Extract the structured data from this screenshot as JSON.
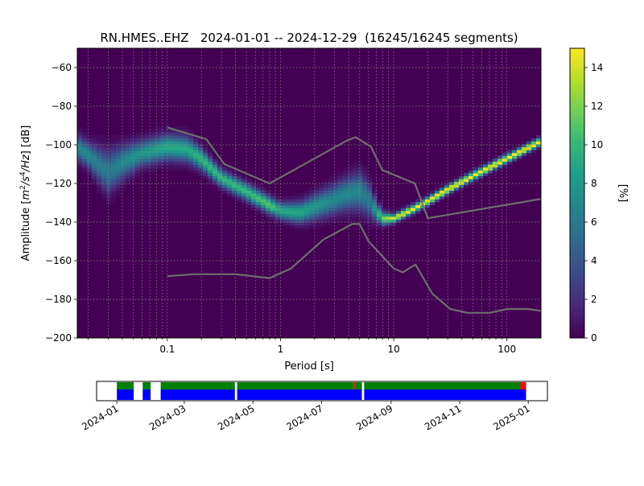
{
  "chart_data": [
    {
      "type": "heatmap",
      "title": "RN.HMES..EHZ   2024-01-01 -- 2024-12-29  (16245/16245 segments)",
      "xlabel": "Period [s]",
      "ylabel_parts": [
        "Amplitude [",
        "m",
        "2",
        "/",
        "s",
        "4",
        "/",
        "Hz",
        "] [dB]"
      ],
      "x_scale": "log",
      "xlim": [
        0.016,
        200
      ],
      "ylim": [
        -200,
        -50
      ],
      "x_ticks": [
        {
          "v": 0.1,
          "label": "0.1"
        },
        {
          "v": 1,
          "label": "1"
        },
        {
          "v": 10,
          "label": "10"
        },
        {
          "v": 100,
          "label": "100"
        }
      ],
      "y_ticks": [
        {
          "v": -60,
          "label": "−60"
        },
        {
          "v": -80,
          "label": "−80"
        },
        {
          "v": -100,
          "label": "−100"
        },
        {
          "v": -120,
          "label": "−120"
        },
        {
          "v": -140,
          "label": "−140"
        },
        {
          "v": -160,
          "label": "−160"
        },
        {
          "v": -180,
          "label": "−180"
        },
        {
          "v": -200,
          "label": "−200"
        }
      ],
      "grid": true,
      "colorbar": {
        "label": "[%]",
        "range": [
          0,
          15
        ],
        "ticks": [
          {
            "v": 0,
            "label": "0"
          },
          {
            "v": 2,
            "label": "2"
          },
          {
            "v": 4,
            "label": "4"
          },
          {
            "v": 6,
            "label": "6"
          },
          {
            "v": 8,
            "label": "8"
          },
          {
            "v": 10,
            "label": "10"
          },
          {
            "v": 12,
            "label": "12"
          },
          {
            "v": 14,
            "label": "14"
          }
        ],
        "colormap": [
          "#440154",
          "#482878",
          "#3e4989",
          "#31688e",
          "#26828e",
          "#1f9e89",
          "#35b779",
          "#6ece58",
          "#b5de2b",
          "#fde725"
        ]
      },
      "mode_curve": {
        "period": [
          0.016,
          0.02,
          0.03,
          0.04,
          0.06,
          0.1,
          0.15,
          0.2,
          0.3,
          0.5,
          0.8,
          1.0,
          1.5,
          2.0,
          3.0,
          4.0,
          5.0,
          6.0,
          7.0,
          8.0,
          10.0,
          15.0,
          20.0,
          30.0,
          50.0,
          100.0,
          200.0
        ],
        "db": [
          -101,
          -105,
          -114,
          -109,
          -104,
          -101,
          -102,
          -107,
          -117,
          -124,
          -131,
          -134,
          -135,
          -132,
          -128,
          -125,
          -124,
          -128,
          -134,
          -138,
          -138,
          -133,
          -129,
          -123,
          -116,
          -107,
          -98
        ],
        "peak_percent": [
          7,
          7,
          6,
          7,
          8,
          9,
          9,
          10,
          10,
          10,
          11,
          9,
          9,
          8,
          7,
          7,
          7,
          6,
          8,
          12,
          14,
          15,
          15,
          15,
          15,
          15,
          15
        ],
        "spread_db": [
          6,
          6,
          10,
          8,
          6,
          6,
          6,
          5,
          4,
          4,
          4,
          4,
          5,
          6,
          7,
          8,
          9,
          8,
          5,
          3,
          2,
          2,
          2,
          2,
          2,
          2,
          2
        ]
      },
      "noise_models": [
        {
          "period": [
            0.1,
            0.17,
            0.4,
            0.8,
            1.24,
            2.4,
            4.3,
            5.0,
            6.0,
            10.0,
            12.0,
            15.6,
            21.9,
            31.6,
            45.0,
            70.0,
            101.0,
            154.0,
            200.0
          ],
          "db": [
            -168,
            -167,
            -167,
            -169,
            -164,
            -149,
            -141,
            -141,
            -150,
            -164,
            -166,
            -162,
            -177,
            -185,
            -187,
            -187,
            -185,
            -185,
            -186
          ]
        },
        {
          "period": [
            0.1,
            0.22,
            0.32,
            0.8,
            3.8,
            4.6,
            6.3,
            7.9,
            15.4,
            20.0,
            200.0
          ],
          "db": [
            -91,
            -97,
            -110,
            -120,
            -98,
            -96,
            -101,
            -113,
            -120,
            -138,
            -128
          ]
        }
      ]
    },
    {
      "type": "timeline",
      "x_ticks": [
        "2024-01",
        "2024-03",
        "2024-05",
        "2024-07",
        "2024-09",
        "2024-11",
        "2025-01"
      ],
      "range": [
        "2023-12-14",
        "2025-01-18"
      ],
      "coverage_upper": [
        {
          "start": "2024-01-01",
          "end": "2024-01-16",
          "color": "#008000"
        },
        {
          "start": "2024-01-24",
          "end": "2024-01-31",
          "color": "#008000"
        },
        {
          "start": "2024-02-09",
          "end": "2024-04-15",
          "color": "#008000"
        },
        {
          "start": "2024-04-17",
          "end": "2024-07-30",
          "color": "#008000"
        },
        {
          "start": "2024-07-30",
          "end": "2024-07-31",
          "color": "#ff0000"
        },
        {
          "start": "2024-07-31",
          "end": "2024-08-06",
          "color": "#008000"
        },
        {
          "start": "2024-08-08",
          "end": "2024-12-25",
          "color": "#008000"
        },
        {
          "start": "2024-12-25",
          "end": "2024-12-30",
          "color": "#ff0000"
        }
      ],
      "coverage_lower": [
        {
          "start": "2024-01-01",
          "end": "2024-01-16",
          "color": "#0000ff"
        },
        {
          "start": "2024-01-24",
          "end": "2024-01-31",
          "color": "#0000ff"
        },
        {
          "start": "2024-02-09",
          "end": "2024-04-15",
          "color": "#0000ff"
        },
        {
          "start": "2024-04-17",
          "end": "2024-08-06",
          "color": "#0000ff"
        },
        {
          "start": "2024-08-08",
          "end": "2024-12-30",
          "color": "#0000ff"
        }
      ]
    }
  ]
}
